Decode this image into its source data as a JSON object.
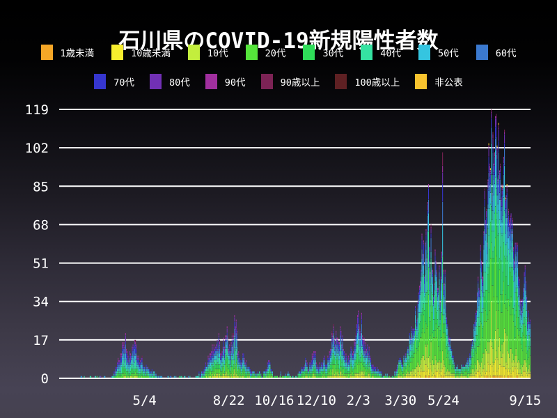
{
  "title": "石川県のCOVID-19新規陽性者数",
  "chart_data": {
    "type": "bar",
    "stacked": true,
    "title": "石川県のCOVID-19新規陽性者数",
    "xlabel": "",
    "ylabel": "",
    "ylim": [
      0,
      119
    ],
    "grid": "horizontal-white",
    "legend_position": "top-two-rows",
    "y_ticks": [
      0,
      17,
      34,
      51,
      68,
      85,
      102,
      119
    ],
    "x_ticks": [
      {
        "label": "5/4",
        "day": 103
      },
      {
        "label": "8/22",
        "day": 205
      },
      {
        "label": "10/16",
        "day": 260
      },
      {
        "label": "12/10",
        "day": 311
      },
      {
        "label": "2/3",
        "day": 362
      },
      {
        "label": "3/30",
        "day": 413
      },
      {
        "label": "5/24",
        "day": 465
      },
      {
        "label": "9/15",
        "day": 564
      }
    ],
    "n_days": 571,
    "groups": [
      {
        "name": "1歳未満",
        "color": "#f5a727"
      },
      {
        "name": "10歳未満",
        "color": "#f7ee2e"
      },
      {
        "name": "10代",
        "color": "#c3ee3d"
      },
      {
        "name": "20代",
        "color": "#55e53b"
      },
      {
        "name": "30代",
        "color": "#2fdd59"
      },
      {
        "name": "40代",
        "color": "#35e3a2"
      },
      {
        "name": "50代",
        "color": "#35c5e0"
      },
      {
        "name": "60代",
        "color": "#3b79cf"
      },
      {
        "name": "70代",
        "color": "#3636cf"
      },
      {
        "name": "80代",
        "color": "#7130b5"
      },
      {
        "name": "90代",
        "color": "#a02f9e"
      },
      {
        "name": "90歳以上",
        "color": "#7c2355"
      },
      {
        "name": "100歳以上",
        "color": "#5e2023"
      },
      {
        "name": "非公表",
        "color": "#f8c32e"
      }
    ],
    "legend_rows": [
      [
        0,
        1,
        2,
        3,
        4,
        5,
        6,
        7
      ],
      [
        8,
        9,
        10,
        11,
        12,
        13
      ]
    ],
    "era_weights": [
      {
        "until_day": 172,
        "weights": [
          0.3,
          1,
          3,
          9,
          12,
          14,
          16,
          14,
          11,
          8,
          5,
          2,
          0.4,
          0.6
        ]
      },
      {
        "until_day": 409,
        "weights": [
          0.4,
          2.5,
          6,
          15,
          14,
          13,
          13,
          11,
          9,
          7,
          4.5,
          1.8,
          0.3,
          0.5
        ]
      },
      {
        "until_day": 9999,
        "weights": [
          0.6,
          5,
          10,
          24,
          18,
          14,
          11,
          7,
          4.5,
          2.5,
          1.2,
          0.6,
          0.15,
          0.4
        ]
      }
    ],
    "envelope": [
      [
        0,
        0
      ],
      [
        28,
        0
      ],
      [
        30,
        1
      ],
      [
        31,
        0
      ],
      [
        36,
        0
      ],
      [
        38,
        1
      ],
      [
        39,
        0
      ],
      [
        44,
        1
      ],
      [
        45,
        0
      ],
      [
        50,
        1
      ],
      [
        51,
        0
      ],
      [
        56,
        1
      ],
      [
        57,
        0
      ],
      [
        60,
        0
      ],
      [
        63,
        1
      ],
      [
        66,
        3
      ],
      [
        69,
        5
      ],
      [
        72,
        8
      ],
      [
        75,
        11
      ],
      [
        78,
        16
      ],
      [
        80,
        20
      ],
      [
        81,
        13
      ],
      [
        83,
        10
      ],
      [
        85,
        12
      ],
      [
        88,
        14
      ],
      [
        91,
        17
      ],
      [
        93,
        15
      ],
      [
        95,
        9
      ],
      [
        97,
        7
      ],
      [
        99,
        9
      ],
      [
        101,
        6
      ],
      [
        103,
        5
      ],
      [
        105,
        6
      ],
      [
        108,
        4
      ],
      [
        111,
        3
      ],
      [
        114,
        3
      ],
      [
        117,
        2
      ],
      [
        120,
        1
      ],
      [
        124,
        1
      ],
      [
        128,
        0
      ],
      [
        133,
        1
      ],
      [
        136,
        0
      ],
      [
        141,
        1
      ],
      [
        144,
        0
      ],
      [
        150,
        1
      ],
      [
        153,
        0
      ],
      [
        158,
        1
      ],
      [
        161,
        0
      ],
      [
        166,
        1
      ],
      [
        169,
        2
      ],
      [
        172,
        3
      ],
      [
        176,
        5
      ],
      [
        179,
        7
      ],
      [
        182,
        11
      ],
      [
        185,
        15
      ],
      [
        188,
        13
      ],
      [
        191,
        17
      ],
      [
        193,
        20
      ],
      [
        195,
        11
      ],
      [
        198,
        14
      ],
      [
        201,
        19
      ],
      [
        203,
        23
      ],
      [
        205,
        13
      ],
      [
        208,
        16
      ],
      [
        211,
        20
      ],
      [
        214,
        26
      ],
      [
        216,
        11
      ],
      [
        219,
        8
      ],
      [
        222,
        11
      ],
      [
        225,
        7
      ],
      [
        228,
        5
      ],
      [
        231,
        4
      ],
      [
        234,
        3
      ],
      [
        238,
        2
      ],
      [
        242,
        3
      ],
      [
        246,
        2
      ],
      [
        250,
        4
      ],
      [
        253,
        8
      ],
      [
        256,
        4
      ],
      [
        259,
        2
      ],
      [
        263,
        1
      ],
      [
        268,
        2
      ],
      [
        272,
        1
      ],
      [
        277,
        2
      ],
      [
        282,
        1
      ],
      [
        287,
        2
      ],
      [
        291,
        3
      ],
      [
        295,
        5
      ],
      [
        298,
        9
      ],
      [
        301,
        4
      ],
      [
        304,
        7
      ],
      [
        307,
        10
      ],
      [
        309,
        12
      ],
      [
        311,
        7
      ],
      [
        314,
        5
      ],
      [
        317,
        7
      ],
      [
        320,
        9
      ],
      [
        323,
        6
      ],
      [
        326,
        9
      ],
      [
        329,
        13
      ],
      [
        332,
        24
      ],
      [
        334,
        15
      ],
      [
        336,
        18
      ],
      [
        339,
        16
      ],
      [
        341,
        21
      ],
      [
        343,
        19
      ],
      [
        345,
        12
      ],
      [
        348,
        10
      ],
      [
        351,
        8
      ],
      [
        354,
        13
      ],
      [
        357,
        17
      ],
      [
        360,
        24
      ],
      [
        362,
        30
      ],
      [
        364,
        22
      ],
      [
        366,
        29
      ],
      [
        368,
        17
      ],
      [
        370,
        13
      ],
      [
        373,
        15
      ],
      [
        375,
        14
      ],
      [
        377,
        9
      ],
      [
        380,
        6
      ],
      [
        383,
        5
      ],
      [
        386,
        4
      ],
      [
        389,
        3
      ],
      [
        392,
        2
      ],
      [
        396,
        2
      ],
      [
        400,
        1
      ],
      [
        404,
        2
      ],
      [
        407,
        3
      ],
      [
        410,
        6
      ],
      [
        413,
        9
      ],
      [
        416,
        6
      ],
      [
        419,
        11
      ],
      [
        422,
        14
      ],
      [
        425,
        18
      ],
      [
        428,
        22
      ],
      [
        431,
        32
      ],
      [
        433,
        26
      ],
      [
        435,
        38
      ],
      [
        438,
        48
      ],
      [
        440,
        55
      ],
      [
        443,
        60
      ],
      [
        446,
        78
      ],
      [
        448,
        58
      ],
      [
        450,
        68
      ],
      [
        452,
        48
      ],
      [
        454,
        42
      ],
      [
        456,
        52
      ],
      [
        458,
        40
      ],
      [
        460,
        50
      ],
      [
        462,
        45
      ],
      [
        464,
        100
      ],
      [
        465,
        48
      ],
      [
        466,
        42
      ],
      [
        468,
        34
      ],
      [
        470,
        24
      ],
      [
        472,
        18
      ],
      [
        474,
        14
      ],
      [
        476,
        10
      ],
      [
        478,
        7
      ],
      [
        481,
        5
      ],
      [
        484,
        4
      ],
      [
        487,
        6
      ],
      [
        490,
        5
      ],
      [
        493,
        7
      ],
      [
        496,
        9
      ],
      [
        499,
        15
      ],
      [
        502,
        24
      ],
      [
        505,
        30
      ],
      [
        508,
        40
      ],
      [
        511,
        52
      ],
      [
        514,
        65
      ],
      [
        517,
        75
      ],
      [
        519,
        88
      ],
      [
        521,
        95
      ],
      [
        523,
        119
      ],
      [
        524,
        82
      ],
      [
        526,
        95
      ],
      [
        527,
        100
      ],
      [
        529,
        117
      ],
      [
        531,
        88
      ],
      [
        533,
        92
      ],
      [
        535,
        80
      ],
      [
        537,
        85
      ],
      [
        538,
        98
      ],
      [
        540,
        80
      ],
      [
        542,
        86
      ],
      [
        544,
        75
      ],
      [
        546,
        72
      ],
      [
        548,
        65
      ],
      [
        550,
        58
      ],
      [
        552,
        60
      ],
      [
        554,
        52
      ],
      [
        556,
        45
      ],
      [
        558,
        35
      ],
      [
        560,
        30
      ],
      [
        562,
        40
      ],
      [
        564,
        50
      ],
      [
        566,
        36
      ],
      [
        568,
        30
      ],
      [
        570,
        26
      ]
    ],
    "highlight_bars": [
      {
        "day": 464,
        "stack": [
          0,
          4,
          8,
          16,
          14,
          12,
          14,
          10,
          8,
          5,
          3,
          6,
          0,
          0
        ]
      },
      {
        "day": 523,
        "stack": [
          0,
          14,
          20,
          26,
          16,
          14,
          14,
          7,
          4,
          2,
          1,
          1,
          0,
          0
        ]
      },
      {
        "day": 529,
        "stack": [
          0,
          12,
          18,
          24,
          16,
          14,
          15,
          8,
          5,
          3,
          1,
          1,
          0,
          0
        ]
      }
    ]
  }
}
